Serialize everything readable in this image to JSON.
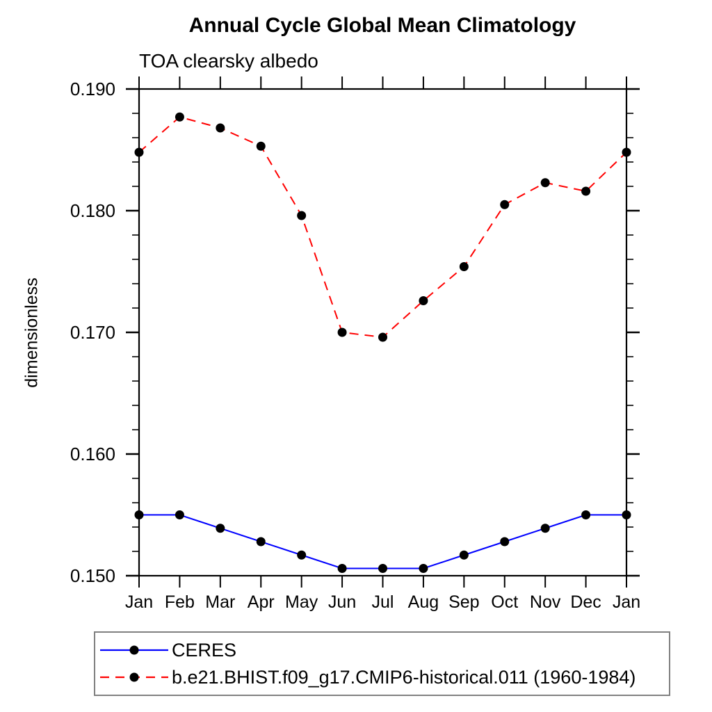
{
  "chart_data": {
    "type": "line",
    "title": "Annual Cycle Global Mean Climatology",
    "subtitle": "TOA clearsky albedo",
    "ylabel": "dimensionless",
    "xlabel": "",
    "x_categories": [
      "Jan",
      "Feb",
      "Mar",
      "Apr",
      "May",
      "Jun",
      "Jul",
      "Aug",
      "Sep",
      "Oct",
      "Nov",
      "Dec",
      "Jan"
    ],
    "ylim": [
      0.15,
      0.19
    ],
    "y_major_step": 0.01,
    "y_minor_step": 0.002,
    "y_tick_labels": [
      "0.150",
      "0.160",
      "0.170",
      "0.180",
      "0.190"
    ],
    "grid": false,
    "legend_position": "bottom-left-box",
    "marker": "filled-circle",
    "marker_color": "#000000",
    "axis_color": "#000000",
    "series": [
      {
        "name": "CERES",
        "color": "#0000ff",
        "style": "solid",
        "values": [
          0.155,
          0.155,
          0.1539,
          0.1528,
          0.1517,
          0.1506,
          0.1506,
          0.1506,
          0.1517,
          0.1528,
          0.1539,
          0.155,
          0.155
        ]
      },
      {
        "name": "b.e21.BHIST.f09_g17.CMIP6-historical.011 (1960-1984)",
        "color": "#ff0000",
        "style": "dashed",
        "values": [
          0.1848,
          0.1877,
          0.1868,
          0.1853,
          0.1796,
          0.17,
          0.1696,
          0.1726,
          0.1754,
          0.1805,
          0.1823,
          0.1816,
          0.1848
        ]
      }
    ]
  }
}
